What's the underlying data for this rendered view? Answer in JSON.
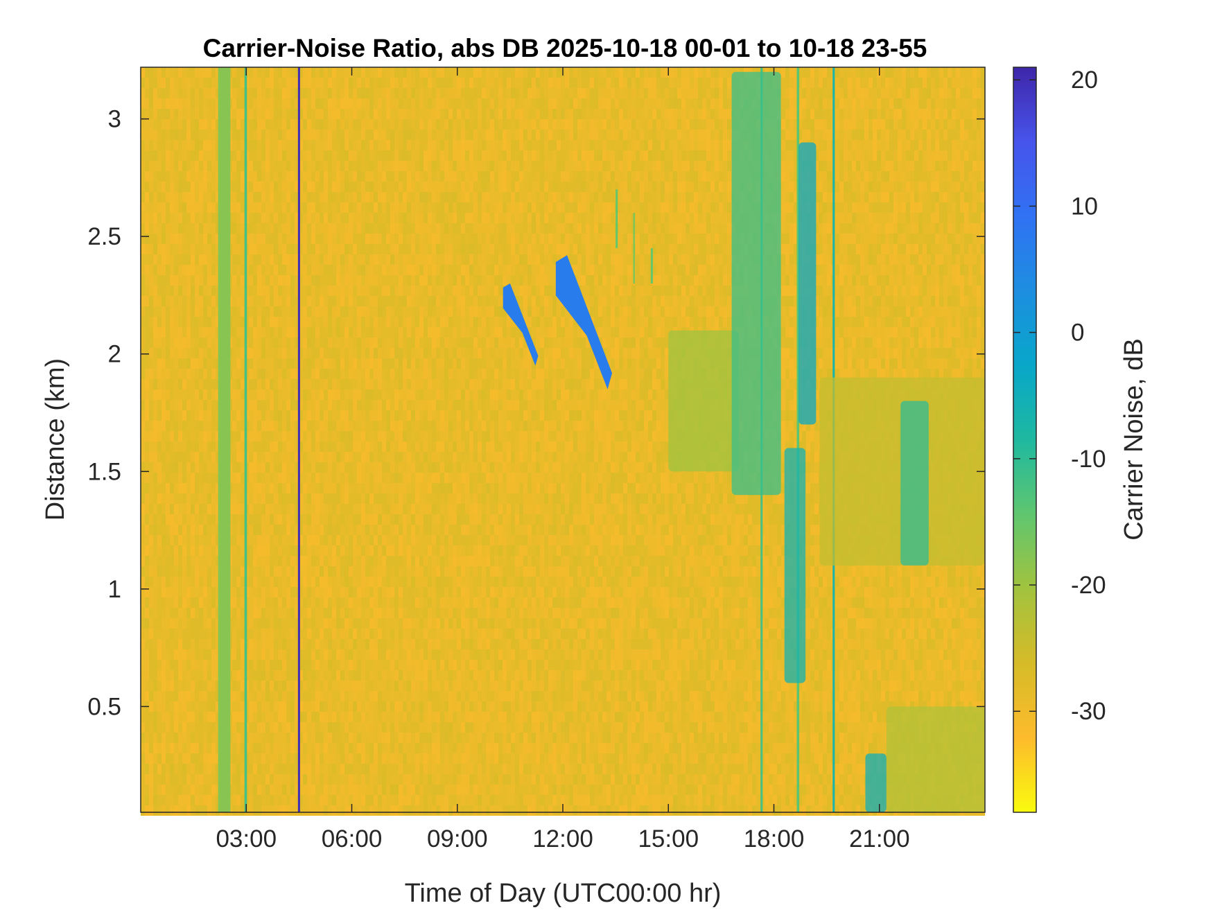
{
  "chart_data": {
    "type": "heatmap",
    "title": "Carrier-Noise Ratio, abs DB 2025-10-18 00-01 to 10-18 23-55",
    "xlabel": "Time of Day (UTC00:00 hr)",
    "ylabel": "Distance (km)",
    "colorbar_label": "Carrier Noise, dB",
    "xlim": [
      0,
      24
    ],
    "ylim": [
      0.05,
      3.22
    ],
    "clim": [
      -38,
      21
    ],
    "x_ticks": [
      3,
      6,
      9,
      12,
      15,
      18,
      21
    ],
    "x_tick_labels": [
      "03:00",
      "06:00",
      "09:00",
      "12:00",
      "15:00",
      "18:00",
      "21:00"
    ],
    "y_ticks": [
      0.5,
      1,
      1.5,
      2,
      2.5,
      3
    ],
    "y_tick_labels": [
      "0.5",
      "1",
      "1.5",
      "2",
      "2.5",
      "3"
    ],
    "c_ticks": [
      -30,
      -20,
      -10,
      0,
      10,
      20
    ],
    "c_tick_labels": [
      "-30",
      "-20",
      "-10",
      "0",
      "10",
      "20"
    ],
    "colormap": [
      "#f9fb0e",
      "#fdbb2c",
      "#d6bb28",
      "#a2c33e",
      "#5fc66f",
      "#1fb9a0",
      "#08a7c9",
      "#1d8ee0",
      "#3072f3",
      "#4754ec",
      "#3e26a8"
    ],
    "background_value": -29,
    "features": [
      {
        "kind": "column",
        "t0": 2.2,
        "t1": 2.55,
        "d0": 0.05,
        "d1": 3.22,
        "value": -18
      },
      {
        "kind": "column",
        "t0": 2.95,
        "t1": 3.02,
        "d0": 0.05,
        "d1": 3.22,
        "value": -12
      },
      {
        "kind": "column",
        "t0": 4.47,
        "t1": 4.53,
        "d0": 0.05,
        "d1": 3.22,
        "value": 20
      },
      {
        "kind": "column",
        "t0": 17.62,
        "t1": 17.68,
        "d0": 0.05,
        "d1": 3.22,
        "value": -12
      },
      {
        "kind": "column",
        "t0": 19.67,
        "t1": 19.73,
        "d0": 0.05,
        "d1": 3.22,
        "value": -7
      },
      {
        "kind": "column",
        "t0": 18.65,
        "t1": 18.72,
        "d0": 0.05,
        "d1": 3.22,
        "value": -14
      },
      {
        "kind": "column",
        "t0": 13.5,
        "t1": 13.56,
        "d0": 2.45,
        "d1": 2.7,
        "value": -15
      },
      {
        "kind": "column",
        "t0": 14.0,
        "t1": 14.05,
        "d0": 2.3,
        "d1": 2.6,
        "value": -17
      },
      {
        "kind": "column",
        "t0": 14.5,
        "t1": 14.56,
        "d0": 2.3,
        "d1": 2.45,
        "value": -15
      },
      {
        "kind": "blob",
        "t0": 10.3,
        "t1": 11.3,
        "d0": 1.95,
        "d1": 2.3,
        "value": 7
      },
      {
        "kind": "blob",
        "t0": 11.8,
        "t1": 13.4,
        "d0": 1.85,
        "d1": 2.42,
        "value": 7
      },
      {
        "kind": "region",
        "t0": 15.0,
        "t1": 17.0,
        "d0": 1.5,
        "d1": 2.1,
        "value": -20
      },
      {
        "kind": "region",
        "t0": 16.8,
        "t1": 18.2,
        "d0": 1.4,
        "d1": 3.2,
        "value": -11
      },
      {
        "kind": "region",
        "t0": 18.3,
        "t1": 18.9,
        "d0": 0.6,
        "d1": 1.6,
        "value": -6
      },
      {
        "kind": "region",
        "t0": 18.7,
        "t1": 19.2,
        "d0": 1.7,
        "d1": 2.9,
        "value": -3
      },
      {
        "kind": "region",
        "t0": 19.3,
        "t1": 24.0,
        "d0": 1.1,
        "d1": 1.9,
        "value": -24
      },
      {
        "kind": "region",
        "t0": 21.6,
        "t1": 22.4,
        "d0": 1.1,
        "d1": 1.8,
        "value": -10
      },
      {
        "kind": "region",
        "t0": 20.6,
        "t1": 21.2,
        "d0": 0.05,
        "d1": 0.3,
        "value": -5
      },
      {
        "kind": "region",
        "t0": 21.2,
        "t1": 24.0,
        "d0": 0.05,
        "d1": 0.5,
        "value": -22
      }
    ]
  }
}
